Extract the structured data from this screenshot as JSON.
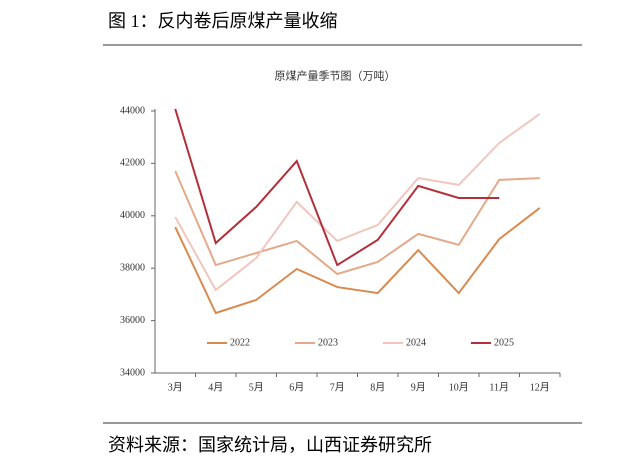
{
  "header": {
    "title": "图 1：反内卷后原煤产量收缩"
  },
  "chart_data": {
    "type": "line",
    "title": "原煤产量季节图（万吨）",
    "categories": [
      "3月",
      "4月",
      "5月",
      "6月",
      "7月",
      "8月",
      "9月",
      "10月",
      "11月",
      "12月"
    ],
    "series": [
      {
        "name": "2022",
        "color": "#d98b4f",
        "values": [
          39570,
          36290,
          36790,
          37970,
          37280,
          37050,
          38690,
          37050,
          39110,
          40300
        ]
      },
      {
        "name": "2023",
        "color": "#e3a989",
        "values": [
          41710,
          38120,
          38580,
          39040,
          37780,
          38240,
          39310,
          38890,
          41370,
          41440
        ]
      },
      {
        "name": "2024",
        "color": "#f0c6bd",
        "values": [
          39950,
          37170,
          38390,
          40530,
          39040,
          39650,
          41440,
          41180,
          42780,
          43890
        ]
      },
      {
        "name": "2025",
        "color": "#b3303a",
        "values": [
          44080,
          38960,
          40340,
          42090,
          38120,
          39080,
          41140,
          40680,
          40680,
          null
        ]
      }
    ],
    "ylim": [
      34000,
      44000
    ],
    "yticks": [
      34000,
      36000,
      38000,
      40000,
      42000,
      44000
    ],
    "grid": false,
    "legend": "bottom"
  },
  "source": "资料来源：国家统计局，山西证券研究所"
}
